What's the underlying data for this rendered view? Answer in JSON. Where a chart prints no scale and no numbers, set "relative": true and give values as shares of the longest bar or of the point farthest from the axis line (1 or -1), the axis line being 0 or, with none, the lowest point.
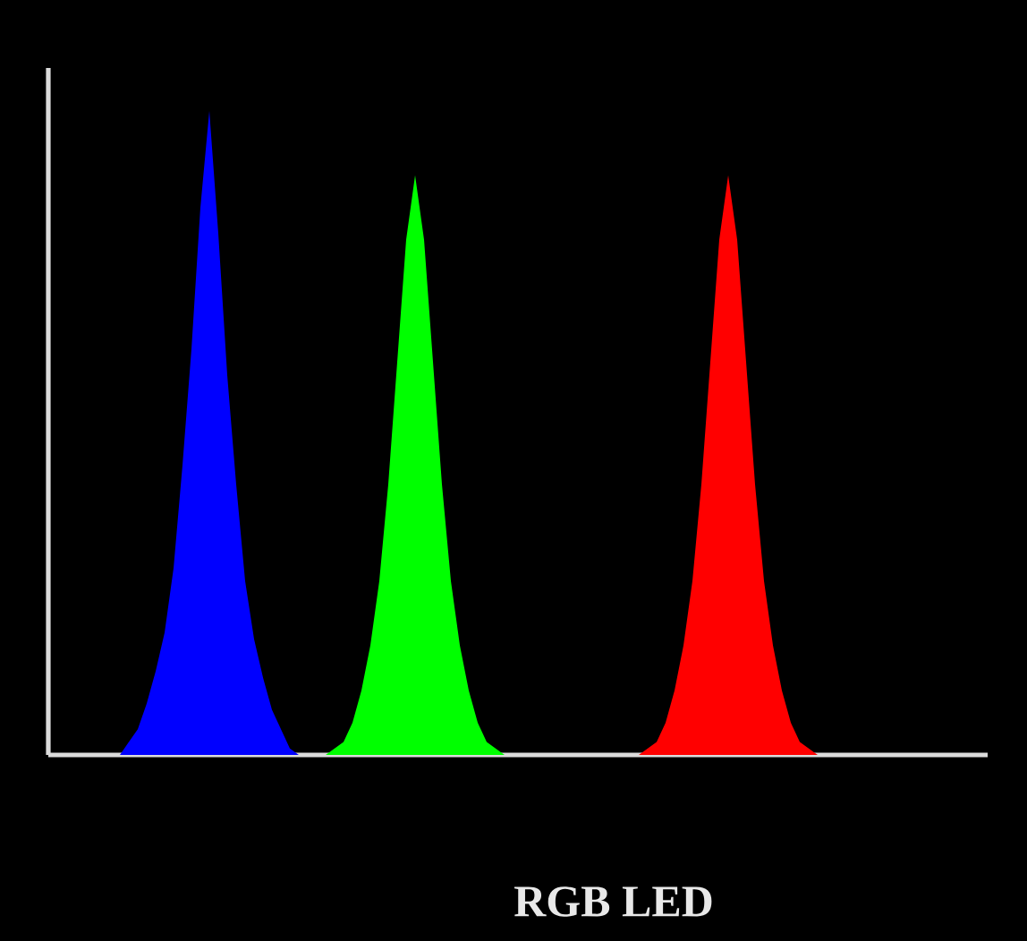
{
  "chart_data": {
    "type": "area",
    "relative": true,
    "title": "RGB LED",
    "categories": [
      null,
      null,
      null,
      null,
      null,
      null,
      null,
      null,
      null,
      null,
      null,
      null,
      null,
      null,
      null,
      null,
      null,
      null,
      null,
      null,
      null,
      null,
      null,
      null,
      null,
      null,
      null,
      null,
      null,
      null,
      null,
      null,
      null,
      null,
      null,
      null,
      null,
      null,
      null,
      null,
      null,
      null,
      null,
      null,
      null,
      null,
      null,
      null,
      null,
      null,
      null,
      null,
      null,
      null,
      null,
      null,
      null,
      null,
      null,
      null,
      null,
      null,
      null,
      null,
      null,
      null,
      null,
      null,
      null,
      null,
      null,
      null,
      null,
      null,
      null,
      null,
      null,
      null,
      null,
      null,
      null,
      null,
      null,
      null,
      null,
      null,
      null,
      null,
      null,
      null,
      null,
      null,
      null,
      null,
      null,
      null,
      null,
      null,
      null,
      null,
      null,
      null,
      null,
      null,
      null,
      null
    ],
    "series": [
      {
        "color": "#0000ff",
        "values": [
          null,
          null,
          null,
          null,
          null,
          null,
          null,
          null,
          0,
          0.02,
          0.04,
          0.08,
          0.13,
          0.19,
          0.29,
          0.45,
          0.63,
          0.85,
          1,
          0.81,
          0.59,
          0.42,
          0.27,
          0.18,
          0.12,
          0.07,
          0.04,
          0.01,
          0,
          null,
          null,
          null,
          null,
          null,
          null,
          null,
          null,
          null,
          null,
          null,
          null,
          null,
          null,
          null,
          null,
          null,
          null,
          null,
          null,
          null,
          null,
          null,
          null,
          null,
          null,
          null,
          null,
          null,
          null,
          null,
          null,
          null,
          null,
          null,
          null,
          null,
          null,
          null,
          null,
          null,
          null,
          null,
          null,
          null,
          null,
          null,
          null,
          null,
          null,
          null,
          null,
          null,
          null,
          null,
          null,
          null,
          null,
          null,
          null,
          null,
          null,
          null,
          null,
          null,
          null,
          null,
          null,
          null,
          null,
          null,
          null,
          null,
          null,
          null,
          null,
          null
        ]
      },
      {
        "color": "#00ff00",
        "values": [
          null,
          null,
          null,
          null,
          null,
          null,
          null,
          null,
          null,
          null,
          null,
          null,
          null,
          null,
          null,
          null,
          null,
          null,
          null,
          null,
          null,
          null,
          null,
          null,
          null,
          null,
          null,
          null,
          null,
          null,
          null,
          0,
          0.01,
          0.02,
          0.05,
          0.1,
          0.17,
          0.27,
          0.42,
          0.61,
          0.8,
          0.9,
          0.8,
          0.61,
          0.42,
          0.27,
          0.17,
          0.1,
          0.05,
          0.02,
          0.01,
          0,
          null,
          null,
          null,
          null,
          null,
          null,
          null,
          null,
          null,
          null,
          null,
          null,
          null,
          null,
          null,
          null,
          null,
          null,
          null,
          null,
          null,
          null,
          null,
          null,
          null,
          null,
          null,
          null,
          null,
          null,
          null,
          null,
          null,
          null,
          null,
          null,
          null,
          null,
          null,
          null,
          null,
          null,
          null,
          null,
          null,
          null,
          null,
          null,
          null,
          null,
          null,
          null,
          null,
          null
        ]
      },
      {
        "color": "#ff0000",
        "values": [
          null,
          null,
          null,
          null,
          null,
          null,
          null,
          null,
          null,
          null,
          null,
          null,
          null,
          null,
          null,
          null,
          null,
          null,
          null,
          null,
          null,
          null,
          null,
          null,
          null,
          null,
          null,
          null,
          null,
          null,
          null,
          null,
          null,
          null,
          null,
          null,
          null,
          null,
          null,
          null,
          null,
          null,
          null,
          null,
          null,
          null,
          null,
          null,
          null,
          null,
          null,
          null,
          null,
          null,
          null,
          null,
          null,
          null,
          null,
          null,
          null,
          null,
          null,
          null,
          null,
          null,
          0,
          0.01,
          0.02,
          0.05,
          0.1,
          0.17,
          0.27,
          0.42,
          0.61,
          0.8,
          0.9,
          0.8,
          0.61,
          0.42,
          0.27,
          0.17,
          0.1,
          0.05,
          0.02,
          0.01,
          0,
          null,
          null,
          null,
          null,
          null,
          null,
          null,
          null,
          null,
          null,
          null,
          null,
          null,
          null,
          null,
          null,
          null,
          null,
          null
        ]
      }
    ]
  }
}
